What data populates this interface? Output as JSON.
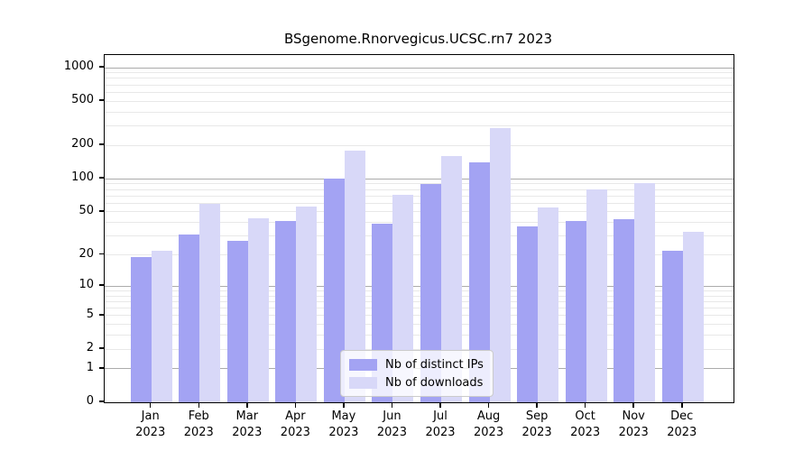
{
  "chart_data": {
    "type": "bar",
    "title": "BSgenome.Rnorvegicus.UCSC.rn7 2023",
    "categories": [
      "Jan",
      "Feb",
      "Mar",
      "Apr",
      "May",
      "Jun",
      "Jul",
      "Aug",
      "Sep",
      "Oct",
      "Nov",
      "Dec"
    ],
    "category_year": "2023",
    "series": [
      {
        "name": "Nb of distinct IPs",
        "color": "#a3a3f3",
        "values": [
          19,
          31,
          27,
          41,
          100,
          39,
          89,
          141,
          37,
          41,
          43,
          22
        ]
      },
      {
        "name": "Nb of downloads",
        "color": "#d8d8f8",
        "values": [
          22,
          59,
          44,
          56,
          178,
          71,
          161,
          285,
          55,
          80,
          92,
          33
        ]
      }
    ],
    "y_scale": "log10(value+1)",
    "y_tick_labels": [
      "1000",
      "500",
      "200",
      "100",
      "50",
      "20",
      "10",
      "5",
      "2",
      "1",
      "0"
    ],
    "y_ticks": [
      1000,
      500,
      200,
      100,
      50,
      20,
      10,
      5,
      2,
      1,
      0
    ],
    "y_major_gridlines": [
      1,
      10,
      100,
      1000
    ],
    "y_minor_gridlines": [
      2,
      3,
      4,
      5,
      6,
      7,
      8,
      9,
      20,
      30,
      40,
      50,
      60,
      70,
      80,
      90,
      200,
      300,
      400,
      500,
      600,
      700,
      800,
      900
    ],
    "ylim": [
      0,
      1300
    ],
    "grid": true,
    "legend_position": "inside-bottom-center",
    "axis_color": "#000000",
    "major_grid_color": "#ababab",
    "minor_grid_color": "#e8e8e8"
  }
}
